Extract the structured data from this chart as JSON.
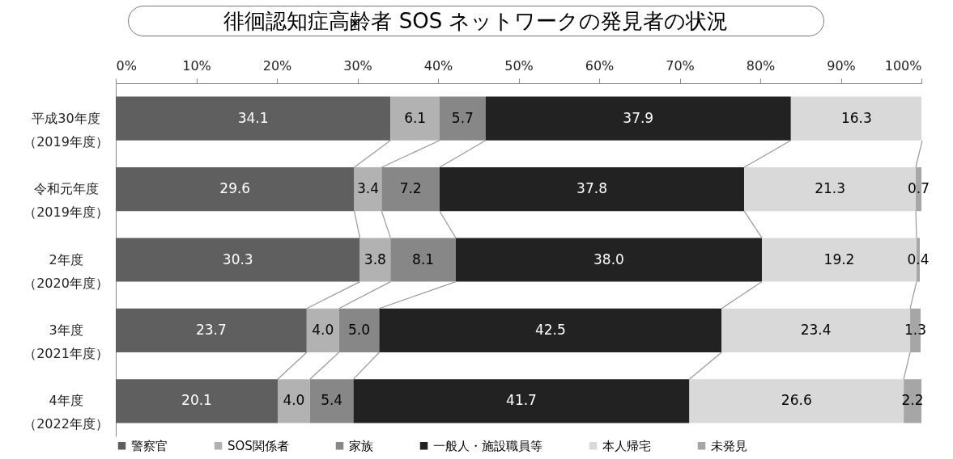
{
  "chart_data": {
    "type": "bar",
    "orientation": "horizontal",
    "stacked": true,
    "title": "徘徊認知症高齢者 SOS ネットワークの発見者の状況",
    "categories": [
      "平成30年度（2019年度）",
      "令和元年度（2019年度）",
      "2年度（2020年度）",
      "3年度（2021年度）",
      "4年度（2022年度）"
    ],
    "series": [
      {
        "name": "警察官",
        "color": "#5f5f5f",
        "values": [
          34.1,
          29.6,
          30.3,
          23.7,
          20.1
        ],
        "value_labels": [
          "34.1",
          "29.6",
          "30.3",
          "23.7",
          "20.1"
        ]
      },
      {
        "name": "SOS関係者",
        "color": "#b2b2b2",
        "values": [
          6.1,
          3.4,
          3.8,
          4.0,
          4.0
        ],
        "value_labels": [
          "6.1",
          "3.4",
          "3.8",
          "4.0",
          "4.0"
        ]
      },
      {
        "name": "家族",
        "color": "#878787",
        "values": [
          5.7,
          7.2,
          8.1,
          5.0,
          5.4
        ],
        "value_labels": [
          "5.7",
          "7.2",
          "8.1",
          "5.0",
          "5.4"
        ]
      },
      {
        "name": "一般人・施設職員等",
        "color": "#222222",
        "values": [
          37.9,
          37.8,
          38.0,
          42.5,
          41.7
        ],
        "value_labels": [
          "37.9",
          "37.8",
          "38.0",
          "42.5",
          "41.7"
        ]
      },
      {
        "name": "本人帰宅",
        "color": "#d9d9d9",
        "values": [
          16.3,
          21.3,
          19.2,
          23.4,
          26.6
        ],
        "value_labels": [
          "16.3",
          "21.3",
          "19.2",
          "23.4",
          "26.6"
        ]
      },
      {
        "name": "未発見",
        "color": "#a6a6a6",
        "values": [
          null,
          0.7,
          0.4,
          1.3,
          2.2
        ],
        "value_labels": [
          null,
          "0.7",
          "0.4",
          "1.3",
          "2.2"
        ]
      }
    ],
    "xlim": [
      0,
      100
    ],
    "xticks": [
      {
        "value": 0,
        "label": "0%"
      },
      {
        "value": 10,
        "label": "10%"
      },
      {
        "value": 20,
        "label": "20%"
      },
      {
        "value": 30,
        "label": "30%"
      },
      {
        "value": 40,
        "label": "40%"
      },
      {
        "value": 50,
        "label": "50%"
      },
      {
        "value": 60,
        "label": "60%"
      },
      {
        "value": 70,
        "label": "70%"
      },
      {
        "value": 80,
        "label": "80%"
      },
      {
        "value": 90,
        "label": "90%"
      },
      {
        "value": 100,
        "label": "100%"
      }
    ],
    "legend": "bottom",
    "grid": false
  }
}
